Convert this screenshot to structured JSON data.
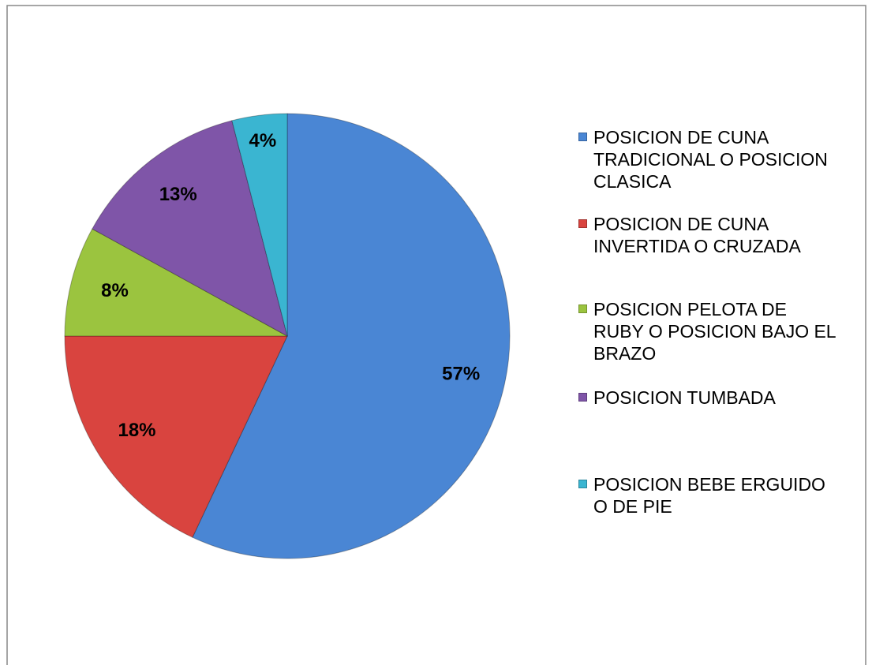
{
  "chart_data": {
    "type": "pie",
    "categories": [
      "POSICION DE CUNA TRADICIONAL O POSICION CLASICA",
      "POSICION DE CUNA INVERTIDA O CRUZADA",
      "POSICION PELOTA DE RUBY O POSICION BAJO EL BRAZO",
      "POSICION TUMBADA",
      "POSICION BEBE ERGUIDO O DE PIE"
    ],
    "values": [
      57,
      18,
      8,
      13,
      4
    ],
    "value_labels": [
      "57%",
      "18%",
      "8%",
      "13%",
      "4%"
    ],
    "colors": [
      "#4a86d4",
      "#d9443f",
      "#9bc43f",
      "#7f55a8",
      "#3ab5d1"
    ],
    "legend": "right"
  }
}
